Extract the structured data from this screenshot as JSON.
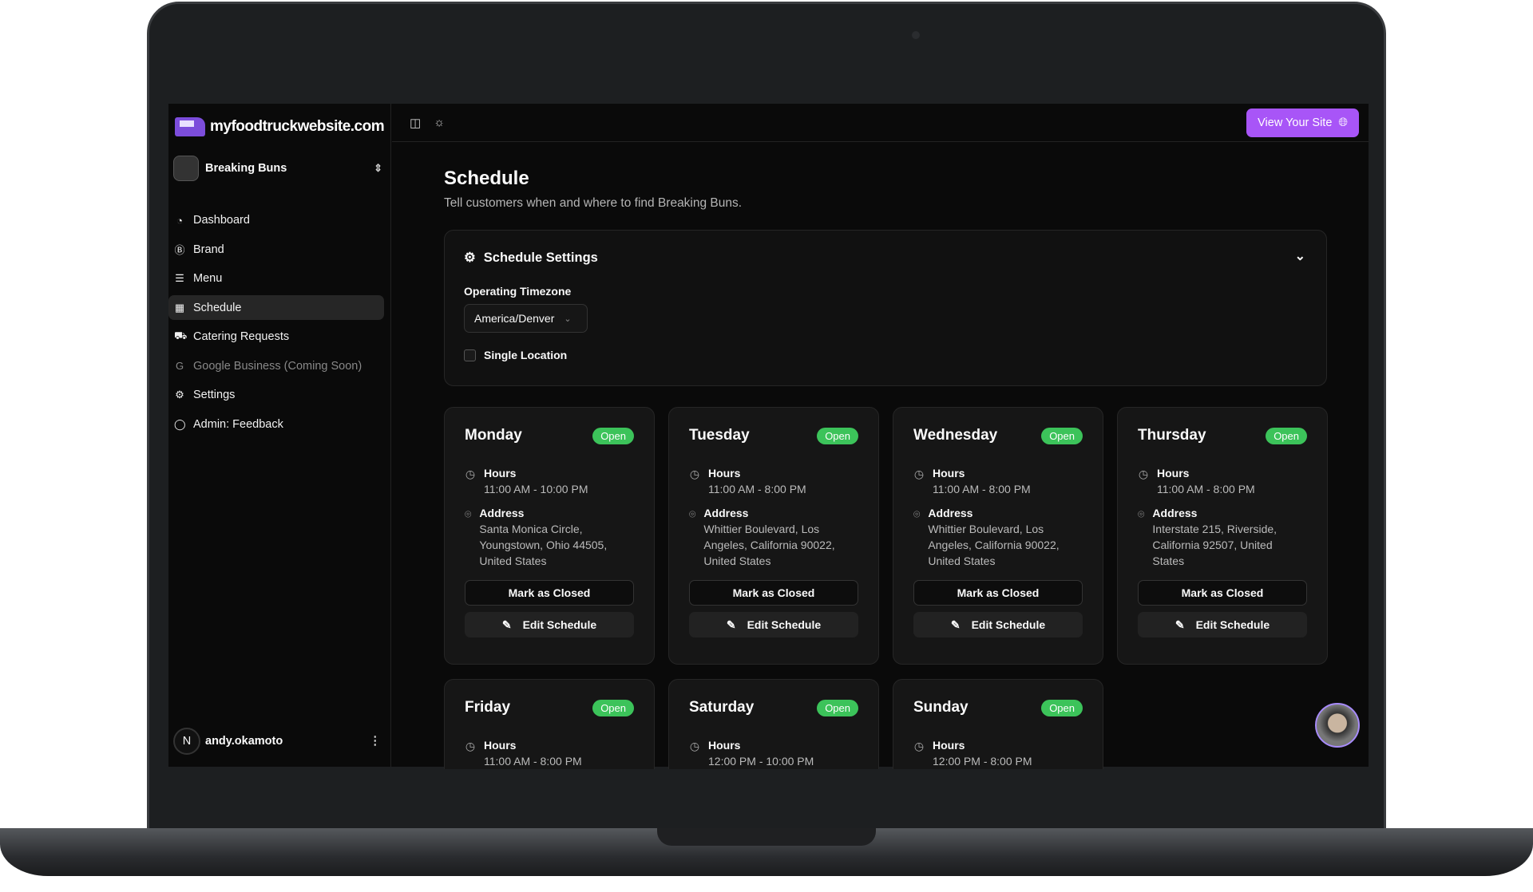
{
  "app": {
    "logo_text": "myfoodtruckwebsite.com",
    "business": "Breaking Buns"
  },
  "sidebar": {
    "items": [
      {
        "label": "Dashboard",
        "icon": "gauge-icon"
      },
      {
        "label": "Brand",
        "icon": "brand-icon"
      },
      {
        "label": "Menu",
        "icon": "burger-icon"
      },
      {
        "label": "Schedule",
        "icon": "calendar-icon",
        "active": true
      },
      {
        "label": "Catering Requests",
        "icon": "truck-icon"
      },
      {
        "label": "Google Business (Coming Soon)",
        "icon": "google-icon",
        "disabled": true
      },
      {
        "label": "Settings",
        "icon": "gear-icon"
      },
      {
        "label": "Admin: Feedback",
        "icon": "chat-icon"
      }
    ],
    "user": {
      "initial": "N",
      "name": "andy.okamoto"
    }
  },
  "topbar": {
    "view_site": "View Your Site"
  },
  "page": {
    "title": "Schedule",
    "subtitle": "Tell customers when and where to find Breaking Buns."
  },
  "settings": {
    "title": "Schedule Settings",
    "timezone_label": "Operating Timezone",
    "timezone": "America/Denver",
    "single_location": "Single Location",
    "single_location_checked": false
  },
  "labels": {
    "hours": "Hours",
    "address": "Address",
    "mark_closed": "Mark as Closed",
    "edit": "Edit Schedule"
  },
  "days": [
    {
      "name": "Monday",
      "status": "Open",
      "hours": "11:00 AM - 10:00 PM",
      "address": "Santa Monica Circle, Youngstown, Ohio 44505, United States"
    },
    {
      "name": "Tuesday",
      "status": "Open",
      "hours": "11:00 AM - 8:00 PM",
      "address": "Whittier Boulevard, Los Angeles, California 90022, United States"
    },
    {
      "name": "Wednesday",
      "status": "Open",
      "hours": "11:00 AM - 8:00 PM",
      "address": "Whittier Boulevard, Los Angeles, California 90022, United States"
    },
    {
      "name": "Thursday",
      "status": "Open",
      "hours": "11:00 AM - 8:00 PM",
      "address": "Interstate 215, Riverside, California 92507, United States"
    },
    {
      "name": "Friday",
      "status": "Open",
      "hours": "11:00 AM - 8:00 PM"
    },
    {
      "name": "Saturday",
      "status": "Open",
      "hours": "12:00 PM - 10:00 PM"
    },
    {
      "name": "Sunday",
      "status": "Open",
      "hours": "12:00 PM - 8:00 PM"
    }
  ],
  "colors": {
    "accent": "#a855f7",
    "open": "#3cc35a"
  }
}
